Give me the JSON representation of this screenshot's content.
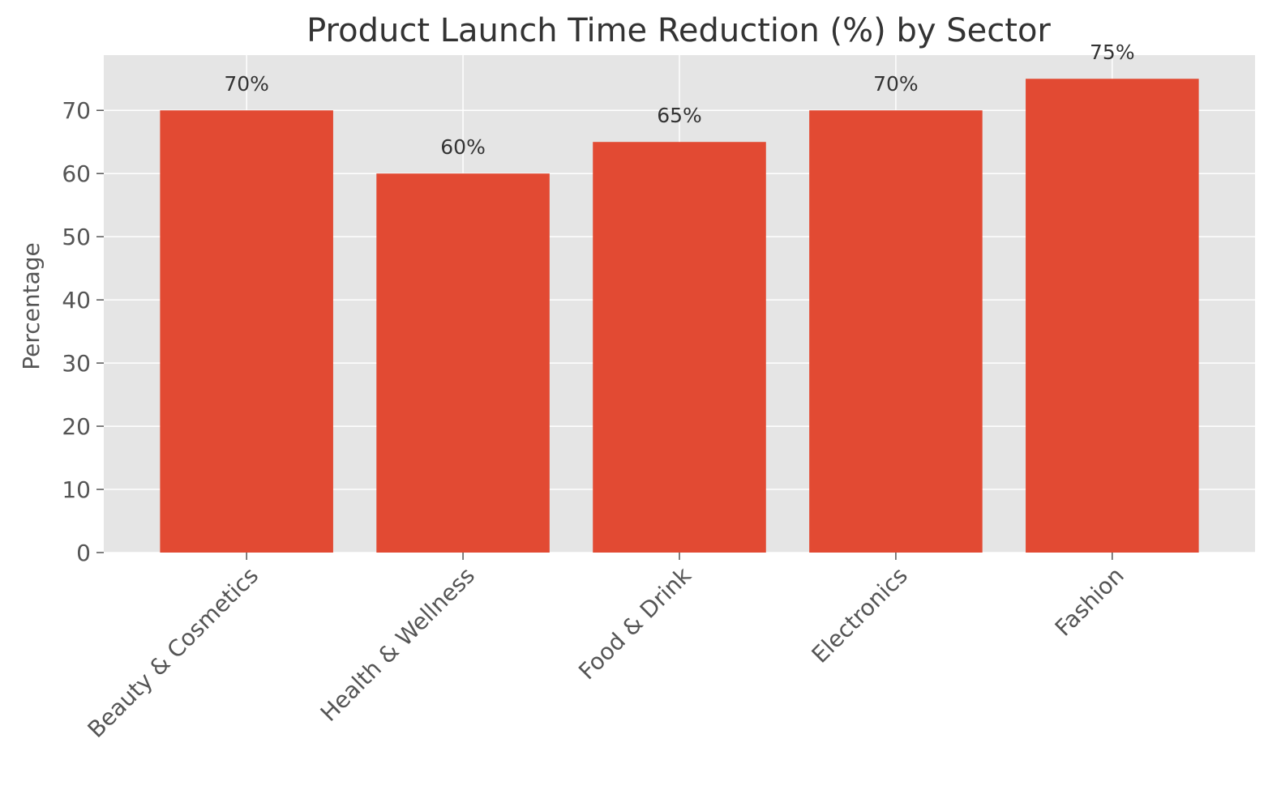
{
  "chart_data": {
    "type": "bar",
    "title": "Product Launch Time Reduction (%) by Sector",
    "xlabel": "",
    "ylabel": "Percentage",
    "categories": [
      "Beauty & Cosmetics",
      "Health & Wellness",
      "Food & Drink",
      "Electronics",
      "Fashion"
    ],
    "values": [
      70,
      60,
      65,
      70,
      75
    ],
    "data_labels": [
      "70%",
      "60%",
      "65%",
      "70%",
      "75%"
    ],
    "yticks": [
      0,
      10,
      20,
      30,
      40,
      50,
      60,
      70
    ],
    "ylim": [
      0,
      78.75
    ],
    "grid": true,
    "colors": {
      "bar": "#E24A33",
      "plot_background": "#E5E5E5",
      "grid": "#FFFFFF"
    }
  }
}
